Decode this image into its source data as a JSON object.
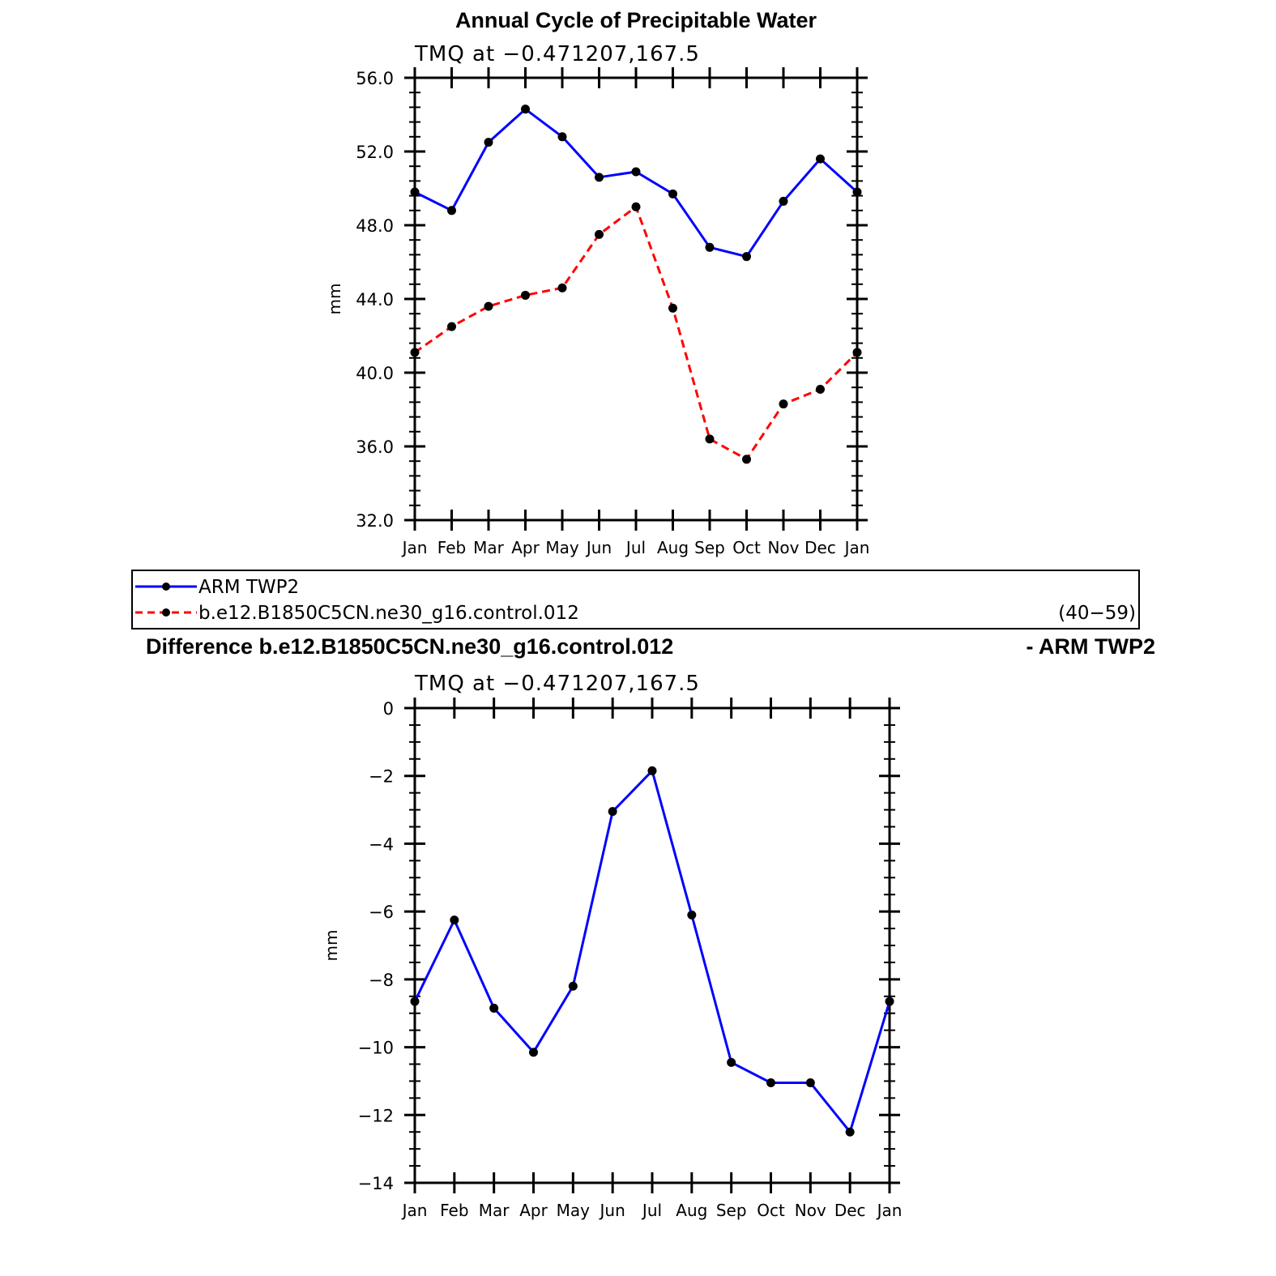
{
  "chart_data": [
    {
      "type": "line",
      "title": "Annual Cycle of Precipitable Water",
      "subtitle": "TMQ at −0.471207,167.5",
      "xlabel": "",
      "ylabel": "mm",
      "categories": [
        "Jan",
        "Feb",
        "Mar",
        "Apr",
        "May",
        "Jun",
        "Jul",
        "Aug",
        "Sep",
        "Oct",
        "Nov",
        "Dec",
        "Jan"
      ],
      "ylim": [
        32,
        56
      ],
      "yticks": [
        "32.0",
        "36.0",
        "40.0",
        "44.0",
        "48.0",
        "52.0",
        "56.0"
      ],
      "series": [
        {
          "name": "ARM  TWP2",
          "color": "#0000ff",
          "dash": "solid",
          "values": [
            49.8,
            48.8,
            52.5,
            54.3,
            52.8,
            50.6,
            50.9,
            49.7,
            46.8,
            46.3,
            49.3,
            51.6,
            49.8
          ]
        },
        {
          "name": "b.e12.B1850C5CN.ne30_g16.control.012",
          "color": "#ff0000",
          "dash": "dashed",
          "values": [
            41.1,
            42.5,
            43.6,
            44.2,
            44.6,
            47.5,
            49.0,
            43.5,
            36.4,
            35.3,
            38.3,
            39.1,
            41.1
          ]
        }
      ],
      "legend": {
        "placement": "below",
        "entries": [
          "ARM  TWP2",
          "b.e12.B1850C5CN.ne30_g16.control.012"
        ],
        "period": "(40−59)"
      }
    },
    {
      "type": "line",
      "title_left": "Difference b.e12.B1850C5CN.ne30_g16.control.012",
      "title_right": "- ARM TWP2",
      "subtitle": "TMQ at −0.471207,167.5",
      "xlabel": "",
      "ylabel": "mm",
      "categories": [
        "Jan",
        "Feb",
        "Mar",
        "Apr",
        "May",
        "Jun",
        "Jul",
        "Aug",
        "Sep",
        "Oct",
        "Nov",
        "Dec",
        "Jan"
      ],
      "ylim": [
        -14,
        0
      ],
      "yticks": [
        "−14",
        "−12",
        "−10",
        "−8",
        "−6",
        "−4",
        "−2",
        "0"
      ],
      "series": [
        {
          "name": "difference",
          "color": "#0000ff",
          "dash": "solid",
          "values": [
            -8.65,
            -6.25,
            -8.85,
            -10.15,
            -8.2,
            -3.05,
            -1.85,
            -6.1,
            -10.45,
            -11.05,
            -11.05,
            -12.5,
            -8.65
          ]
        }
      ]
    }
  ]
}
